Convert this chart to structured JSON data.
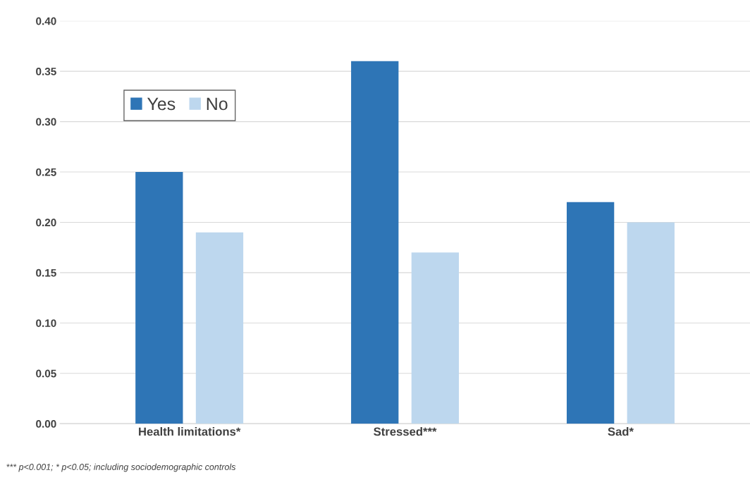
{
  "chart_data": {
    "type": "bar",
    "categories": [
      "Health limitations*",
      "Stressed***",
      "Sad*"
    ],
    "series": [
      {
        "name": "Yes",
        "color": "#2e75b6",
        "values": [
          0.25,
          0.36,
          0.22
        ]
      },
      {
        "name": "No",
        "color": "#bdd7ee",
        "values": [
          0.19,
          0.17,
          0.2
        ]
      }
    ],
    "ylim": [
      0,
      0.4
    ],
    "yticks": [
      {
        "value": 0,
        "label": "0.00"
      },
      {
        "value": 0.05,
        "label": "0.05"
      },
      {
        "value": 0.1,
        "label": "0.10"
      },
      {
        "value": 0.15,
        "label": "0.15"
      },
      {
        "value": 0.2,
        "label": "0.20"
      },
      {
        "value": 0.25,
        "label": "0.25"
      },
      {
        "value": 0.3,
        "label": "0.30"
      },
      {
        "value": 0.35,
        "label": "0.35"
      },
      {
        "value": 0.4,
        "label": "0.40"
      }
    ],
    "grid": "y",
    "legend": "top left",
    "annotations": [
      "*** p<0.001; * p<0.05; including sociodemographic controls"
    ]
  }
}
